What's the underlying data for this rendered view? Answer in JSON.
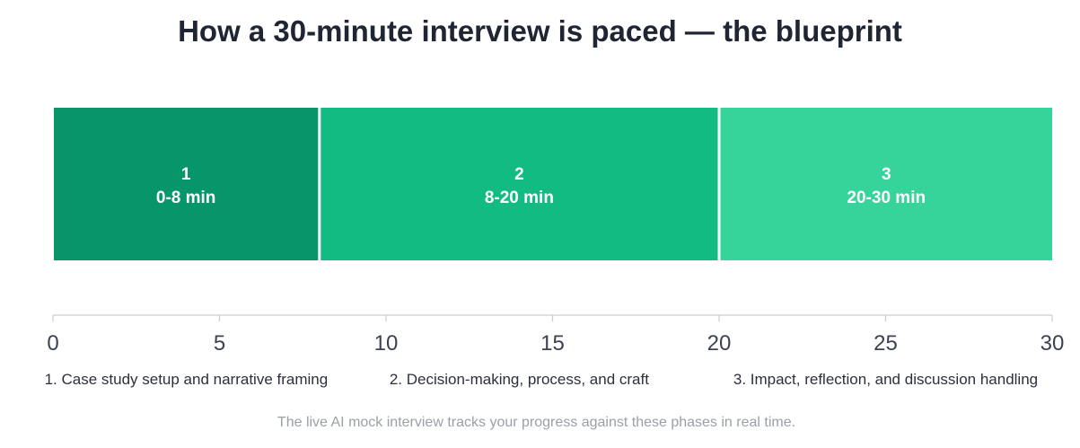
{
  "chart_data": {
    "type": "bar",
    "orientation": "horizontal-stacked",
    "title": "How a 30-minute interview is paced — the blueprint",
    "xlabel": "",
    "ylabel": "",
    "xlim": [
      0,
      30
    ],
    "xticks": [
      0,
      5,
      10,
      15,
      20,
      25,
      30
    ],
    "grid": false,
    "segments": [
      {
        "number": "1",
        "range": "0-8 min",
        "start": 0,
        "end": 8,
        "color": "#07966a",
        "legend": "1. Case study setup and narrative framing"
      },
      {
        "number": "2",
        "range": "8-20 min",
        "start": 8,
        "end": 20,
        "color": "#12bb82",
        "legend": "2. Decision-making, process, and craft"
      },
      {
        "number": "3",
        "range": "20-30 min",
        "start": 20,
        "end": 30,
        "color": "#36d49a",
        "legend": "3. Impact, reflection, and discussion handling"
      }
    ],
    "footnote": "The live AI mock interview tracks your progress against these phases in real time."
  }
}
